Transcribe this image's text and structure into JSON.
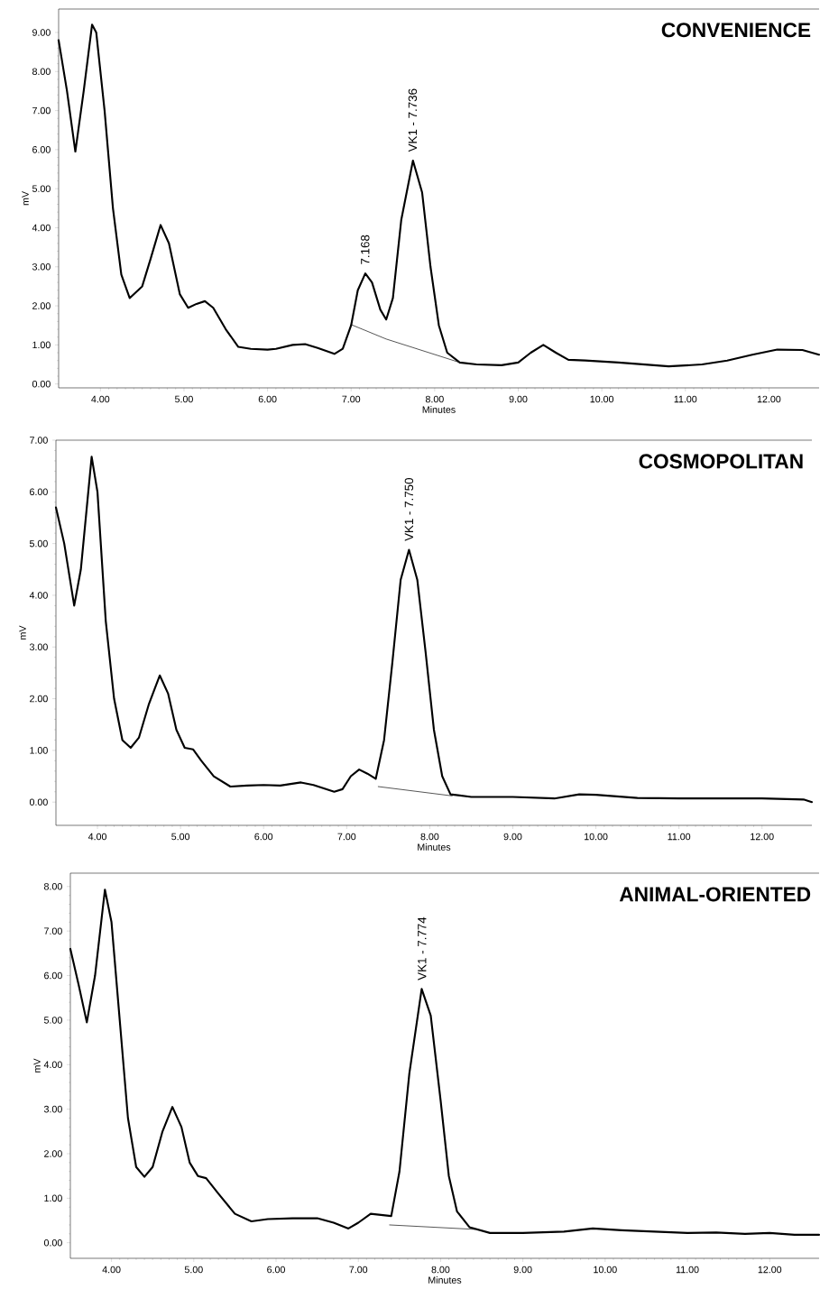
{
  "chart_data": [
    {
      "type": "line",
      "title": "CONVENIENCE",
      "xlabel": "Minutes",
      "ylabel": "mV",
      "xlim": [
        3.5,
        12.6
      ],
      "ylim": [
        -0.1,
        9.6
      ],
      "xticks": [
        {
          "value": 4,
          "label": "4.00"
        },
        {
          "value": 5,
          "label": "5.00"
        },
        {
          "value": 6,
          "label": "6.00"
        },
        {
          "value": 7,
          "label": "7.00"
        },
        {
          "value": 8,
          "label": "8.00"
        },
        {
          "value": 9,
          "label": "9.00"
        },
        {
          "value": 10,
          "label": "10.00"
        },
        {
          "value": 11,
          "label": "11.00"
        },
        {
          "value": 12,
          "label": "12.00"
        }
      ],
      "yticks": [
        {
          "value": 0,
          "label": "0.00"
        },
        {
          "value": 1,
          "label": "1.00"
        },
        {
          "value": 2,
          "label": "2.00"
        },
        {
          "value": 3,
          "label": "3.00"
        },
        {
          "value": 4,
          "label": "4.00"
        },
        {
          "value": 5,
          "label": "5.00"
        },
        {
          "value": 6,
          "label": "6.00"
        },
        {
          "value": 7,
          "label": "7.00"
        },
        {
          "value": 8,
          "label": "8.00"
        },
        {
          "value": 9,
          "label": "9.00"
        }
      ],
      "series": [
        {
          "color": "#000000",
          "x": [
            3.5,
            3.6,
            3.7,
            3.8,
            3.9,
            3.95,
            4.05,
            4.15,
            4.25,
            4.35,
            4.5,
            4.6,
            4.72,
            4.82,
            4.95,
            5.05,
            5.15,
            5.25,
            5.35,
            5.5,
            5.65,
            5.8,
            6.0,
            6.1,
            6.3,
            6.45,
            6.6,
            6.8,
            6.9,
            7.0,
            7.08,
            7.17,
            7.25,
            7.35,
            7.42,
            7.5,
            7.6,
            7.74,
            7.85,
            7.95,
            8.05,
            8.15,
            8.3,
            8.5,
            8.8,
            9.0,
            9.15,
            9.3,
            9.45,
            9.6,
            9.8,
            10.2,
            10.5,
            10.8,
            11.2,
            11.5,
            11.8,
            12.1,
            12.4,
            12.6
          ],
          "values": [
            8.8,
            7.5,
            5.95,
            7.5,
            9.2,
            9.0,
            7.0,
            4.5,
            2.8,
            2.2,
            2.5,
            3.2,
            4.07,
            3.6,
            2.3,
            1.95,
            2.05,
            2.12,
            1.95,
            1.4,
            0.95,
            0.9,
            0.88,
            0.9,
            1.0,
            1.02,
            0.92,
            0.77,
            0.9,
            1.5,
            2.4,
            2.83,
            2.6,
            1.9,
            1.65,
            2.2,
            4.2,
            5.72,
            4.9,
            3.0,
            1.5,
            0.8,
            0.55,
            0.5,
            0.48,
            0.55,
            0.8,
            1.0,
            0.8,
            0.62,
            0.6,
            0.55,
            0.5,
            0.45,
            0.5,
            0.6,
            0.75,
            0.88,
            0.87,
            0.75
          ]
        },
        {
          "color": "#000000",
          "x": [
            7.0,
            7.42,
            8.3
          ],
          "values": [
            1.52,
            1.15,
            0.55
          ]
        }
      ],
      "annotations": [
        {
          "text": "7.168",
          "x": 7.168,
          "y": 2.83
        },
        {
          "text": "VK1 - 7.736",
          "x": 7.736,
          "y": 5.72
        }
      ]
    },
    {
      "type": "line",
      "title": "COSMOPOLITAN",
      "xlabel": "Minutes",
      "ylabel": "mV",
      "xlim": [
        3.5,
        12.6
      ],
      "ylim": [
        -0.45,
        7.0
      ],
      "xticks": [
        {
          "value": 4,
          "label": "4.00"
        },
        {
          "value": 5,
          "label": "5.00"
        },
        {
          "value": 6,
          "label": "6.00"
        },
        {
          "value": 7,
          "label": "7.00"
        },
        {
          "value": 8,
          "label": "8.00"
        },
        {
          "value": 9,
          "label": "9.00"
        },
        {
          "value": 10,
          "label": "10.00"
        },
        {
          "value": 11,
          "label": "11.00"
        },
        {
          "value": 12,
          "label": "12.00"
        }
      ],
      "yticks": [
        {
          "value": 0,
          "label": "0.00"
        },
        {
          "value": 1,
          "label": "1.00"
        },
        {
          "value": 2,
          "label": "2.00"
        },
        {
          "value": 3,
          "label": "3.00"
        },
        {
          "value": 4,
          "label": "4.00"
        },
        {
          "value": 5,
          "label": "5.00"
        },
        {
          "value": 6,
          "label": "6.00"
        },
        {
          "value": 7,
          "label": "7.00"
        }
      ],
      "series": [
        {
          "color": "#000000",
          "x": [
            3.5,
            3.6,
            3.72,
            3.8,
            3.93,
            4.0,
            4.1,
            4.2,
            4.3,
            4.4,
            4.5,
            4.62,
            4.75,
            4.85,
            4.95,
            5.05,
            5.15,
            5.25,
            5.4,
            5.6,
            5.8,
            6.0,
            6.2,
            6.45,
            6.6,
            6.85,
            6.95,
            7.05,
            7.15,
            7.25,
            7.35,
            7.45,
            7.55,
            7.65,
            7.75,
            7.85,
            7.95,
            8.05,
            8.15,
            8.25,
            8.5,
            9.0,
            9.5,
            9.8,
            10.0,
            10.5,
            11.0,
            11.5,
            12.0,
            12.5,
            12.6
          ],
          "values": [
            5.7,
            5.0,
            3.8,
            4.5,
            6.68,
            6.0,
            3.5,
            2.0,
            1.2,
            1.05,
            1.25,
            1.9,
            2.45,
            2.1,
            1.4,
            1.05,
            1.02,
            0.8,
            0.5,
            0.3,
            0.32,
            0.33,
            0.32,
            0.38,
            0.33,
            0.2,
            0.25,
            0.5,
            0.63,
            0.55,
            0.45,
            1.2,
            2.7,
            4.3,
            4.88,
            4.3,
            2.9,
            1.4,
            0.5,
            0.15,
            0.1,
            0.1,
            0.07,
            0.15,
            0.14,
            0.08,
            0.07,
            0.07,
            0.07,
            0.05,
            0.0
          ]
        },
        {
          "color": "#000000",
          "x": [
            7.38,
            8.27
          ],
          "values": [
            0.3,
            0.12
          ]
        }
      ],
      "annotations": [
        {
          "text": "VK1 - 7.750",
          "x": 7.75,
          "y": 4.88
        }
      ]
    },
    {
      "type": "line",
      "title": "ANIMAL-ORIENTED",
      "xlabel": "Minutes",
      "ylabel": "mV",
      "xlim": [
        3.5,
        12.6
      ],
      "ylim": [
        -0.35,
        8.3
      ],
      "xticks": [
        {
          "value": 4,
          "label": "4.00"
        },
        {
          "value": 5,
          "label": "5.00"
        },
        {
          "value": 6,
          "label": "6.00"
        },
        {
          "value": 7,
          "label": "7.00"
        },
        {
          "value": 8,
          "label": "8.00"
        },
        {
          "value": 9,
          "label": "9.00"
        },
        {
          "value": 10,
          "label": "10.00"
        },
        {
          "value": 11,
          "label": "11.00"
        },
        {
          "value": 12,
          "label": "12.00"
        }
      ],
      "yticks": [
        {
          "value": 0,
          "label": "0.00"
        },
        {
          "value": 1,
          "label": "1.00"
        },
        {
          "value": 2,
          "label": "2.00"
        },
        {
          "value": 3,
          "label": "3.00"
        },
        {
          "value": 4,
          "label": "4.00"
        },
        {
          "value": 5,
          "label": "5.00"
        },
        {
          "value": 6,
          "label": "6.00"
        },
        {
          "value": 7,
          "label": "7.00"
        },
        {
          "value": 8,
          "label": "8.00"
        }
      ],
      "series": [
        {
          "color": "#000000",
          "x": [
            3.5,
            3.6,
            3.7,
            3.8,
            3.92,
            4.0,
            4.1,
            4.2,
            4.3,
            4.4,
            4.5,
            4.62,
            4.74,
            4.85,
            4.95,
            5.05,
            5.15,
            5.3,
            5.5,
            5.7,
            5.9,
            6.2,
            6.5,
            6.7,
            6.88,
            7.0,
            7.15,
            7.3,
            7.4,
            7.5,
            7.62,
            7.77,
            7.88,
            8.0,
            8.1,
            8.2,
            8.35,
            8.6,
            9.0,
            9.5,
            9.85,
            10.2,
            10.6,
            11.0,
            11.35,
            11.7,
            12.0,
            12.3,
            12.6
          ],
          "values": [
            6.6,
            5.8,
            4.95,
            6.0,
            7.93,
            7.2,
            5.0,
            2.8,
            1.7,
            1.48,
            1.7,
            2.5,
            3.05,
            2.6,
            1.8,
            1.5,
            1.45,
            1.1,
            0.65,
            0.48,
            0.53,
            0.55,
            0.55,
            0.45,
            0.32,
            0.45,
            0.65,
            0.62,
            0.6,
            1.6,
            3.8,
            5.7,
            5.1,
            3.2,
            1.5,
            0.7,
            0.35,
            0.22,
            0.22,
            0.25,
            0.32,
            0.28,
            0.25,
            0.22,
            0.23,
            0.2,
            0.22,
            0.18,
            0.18
          ]
        },
        {
          "color": "#000000",
          "x": [
            7.38,
            8.42
          ],
          "values": [
            0.4,
            0.3
          ]
        }
      ],
      "annotations": [
        {
          "text": "VK1 - 7.774",
          "x": 7.774,
          "y": 5.7
        }
      ]
    }
  ]
}
